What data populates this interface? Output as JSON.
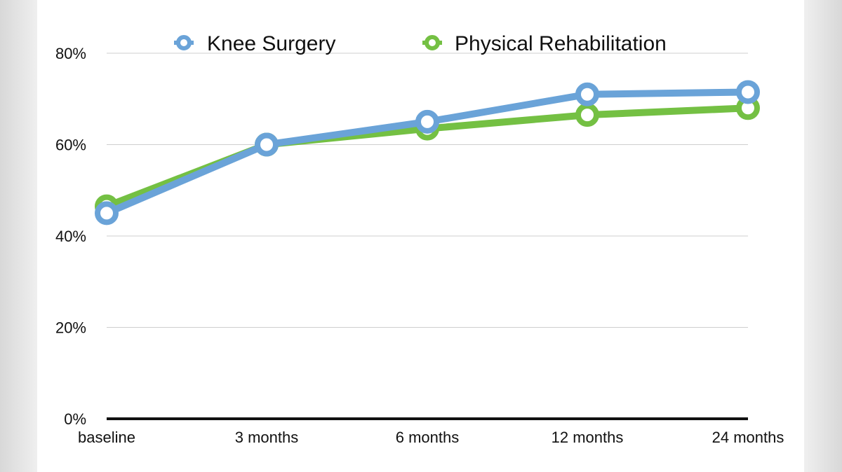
{
  "chart_data": {
    "type": "line",
    "categories": [
      "baseline",
      "3 months",
      "6 months",
      "12 months",
      "24 months"
    ],
    "series": [
      {
        "name": "Knee Surgery",
        "values": [
          45,
          60,
          65,
          71,
          71.5
        ],
        "color": "#6aa3d8"
      },
      {
        "name": "Physical Rehabilitation",
        "values": [
          46.5,
          60,
          63.5,
          66.5,
          68
        ],
        "color": "#74c043"
      }
    ],
    "y_ticks": [
      "0%",
      "20%",
      "40%",
      "60%",
      "80%"
    ],
    "ylim": [
      0,
      80
    ],
    "grid": true,
    "legend_position": "top"
  }
}
